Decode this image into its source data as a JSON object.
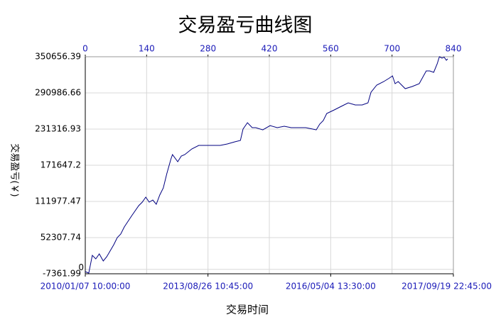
{
  "chart_data": {
    "type": "line",
    "title": "交易盈亏曲线图",
    "x_label": "交易时间",
    "y_label": "交易盈亏(￥)",
    "x": [
      0,
      8,
      16,
      24,
      32,
      41,
      49,
      65,
      73,
      81,
      89,
      105,
      122,
      130,
      138,
      146,
      154,
      162,
      170,
      178,
      186,
      195,
      199,
      211,
      219,
      227,
      243,
      259,
      276,
      292,
      308,
      324,
      341,
      354,
      360,
      370,
      381,
      389,
      405,
      422,
      438,
      454,
      470,
      486,
      503,
      519,
      527,
      535,
      543,
      551,
      568,
      584,
      600,
      616,
      632,
      645,
      652,
      665,
      681,
      694,
      701,
      707,
      714,
      730,
      746,
      762,
      778,
      786,
      795,
      803,
      808,
      814,
      819,
      824,
      827
    ],
    "series": [
      {
        "name": "交易盈亏",
        "color": "#000080",
        "values": [
          -3900,
          -6200,
          23100,
          17200,
          25400,
          13700,
          20700,
          40600,
          52300,
          58200,
          69900,
          87400,
          105000,
          110800,
          119000,
          110800,
          114300,
          107300,
          122500,
          134200,
          157600,
          181000,
          189200,
          177500,
          186900,
          189200,
          198600,
          204400,
          204400,
          204400,
          204400,
          206700,
          210300,
          212600,
          231300,
          241800,
          233700,
          233700,
          230000,
          237100,
          233700,
          236000,
          233700,
          233700,
          233700,
          231300,
          230000,
          239500,
          245400,
          257100,
          262900,
          268800,
          274600,
          271100,
          271100,
          274600,
          292200,
          303900,
          309700,
          315600,
          319100,
          306200,
          309700,
          298000,
          301500,
          306200,
          327300,
          327300,
          324900,
          339000,
          350700,
          348300,
          350000,
          344800,
          347100
        ]
      }
    ],
    "xlim": [
      0,
      840
    ],
    "xticks": [
      0,
      140,
      280,
      420,
      560,
      700,
      840
    ],
    "x2ticks": [
      {
        "value": 0,
        "label": "2010/01/07 10:00:00"
      },
      {
        "value": 280,
        "label": "2013/08/26 10:45:00"
      },
      {
        "value": 560,
        "label": "2016/05/04 13:30:00"
      },
      {
        "value": 840,
        "label": "2017/09/19 22:45:00"
      }
    ],
    "ylim": [
      -7361.99,
      350656.39
    ],
    "yticks": [
      -7361.99,
      0,
      52307.74,
      111977.47,
      171647.2,
      231316.93,
      290986.66,
      350656.39
    ],
    "grid": true
  }
}
